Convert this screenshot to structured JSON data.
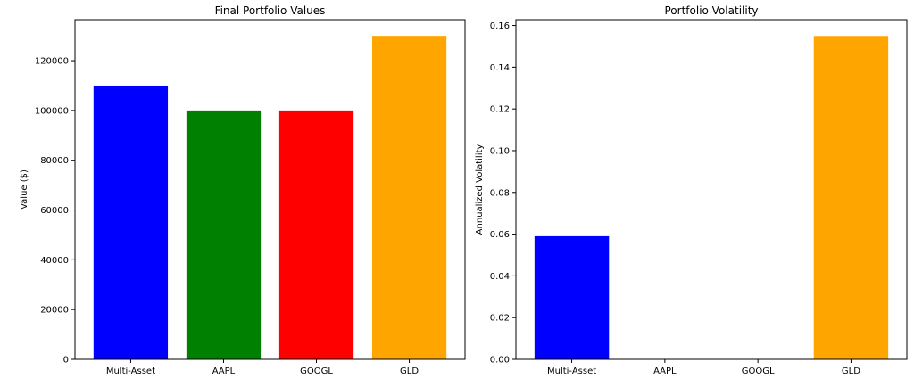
{
  "chart_data": [
    {
      "type": "bar",
      "title": "Final Portfolio Values",
      "xlabel": "",
      "ylabel": "Value ($)",
      "categories": [
        "Multi-Asset",
        "AAPL",
        "GOOGL",
        "GLD"
      ],
      "values": [
        110000,
        100000,
        100000,
        130000
      ],
      "colors": [
        "#0000ff",
        "#008000",
        "#ff0000",
        "#ffa500"
      ],
      "ylim": [
        0,
        136500
      ],
      "yticks": [
        0,
        20000,
        40000,
        60000,
        80000,
        100000,
        120000
      ],
      "ytick_labels": [
        "0",
        "20000",
        "40000",
        "60000",
        "80000",
        "100000",
        "120000"
      ],
      "grid": false
    },
    {
      "type": "bar",
      "title": "Portfolio Volatility",
      "xlabel": "",
      "ylabel": "Annualized Volatility",
      "categories": [
        "Multi-Asset",
        "AAPL",
        "GOOGL",
        "GLD"
      ],
      "values": [
        0.059,
        0.0,
        0.0,
        0.155
      ],
      "colors": [
        "#0000ff",
        "#008000",
        "#ff0000",
        "#ffa500"
      ],
      "ylim": [
        0,
        0.1628
      ],
      "yticks": [
        0,
        0.02,
        0.04,
        0.06,
        0.08,
        0.1,
        0.12,
        0.14,
        0.16
      ],
      "ytick_labels": [
        "0.00",
        "0.02",
        "0.04",
        "0.06",
        "0.08",
        "0.10",
        "0.12",
        "0.14",
        "0.16"
      ],
      "grid": false
    }
  ]
}
